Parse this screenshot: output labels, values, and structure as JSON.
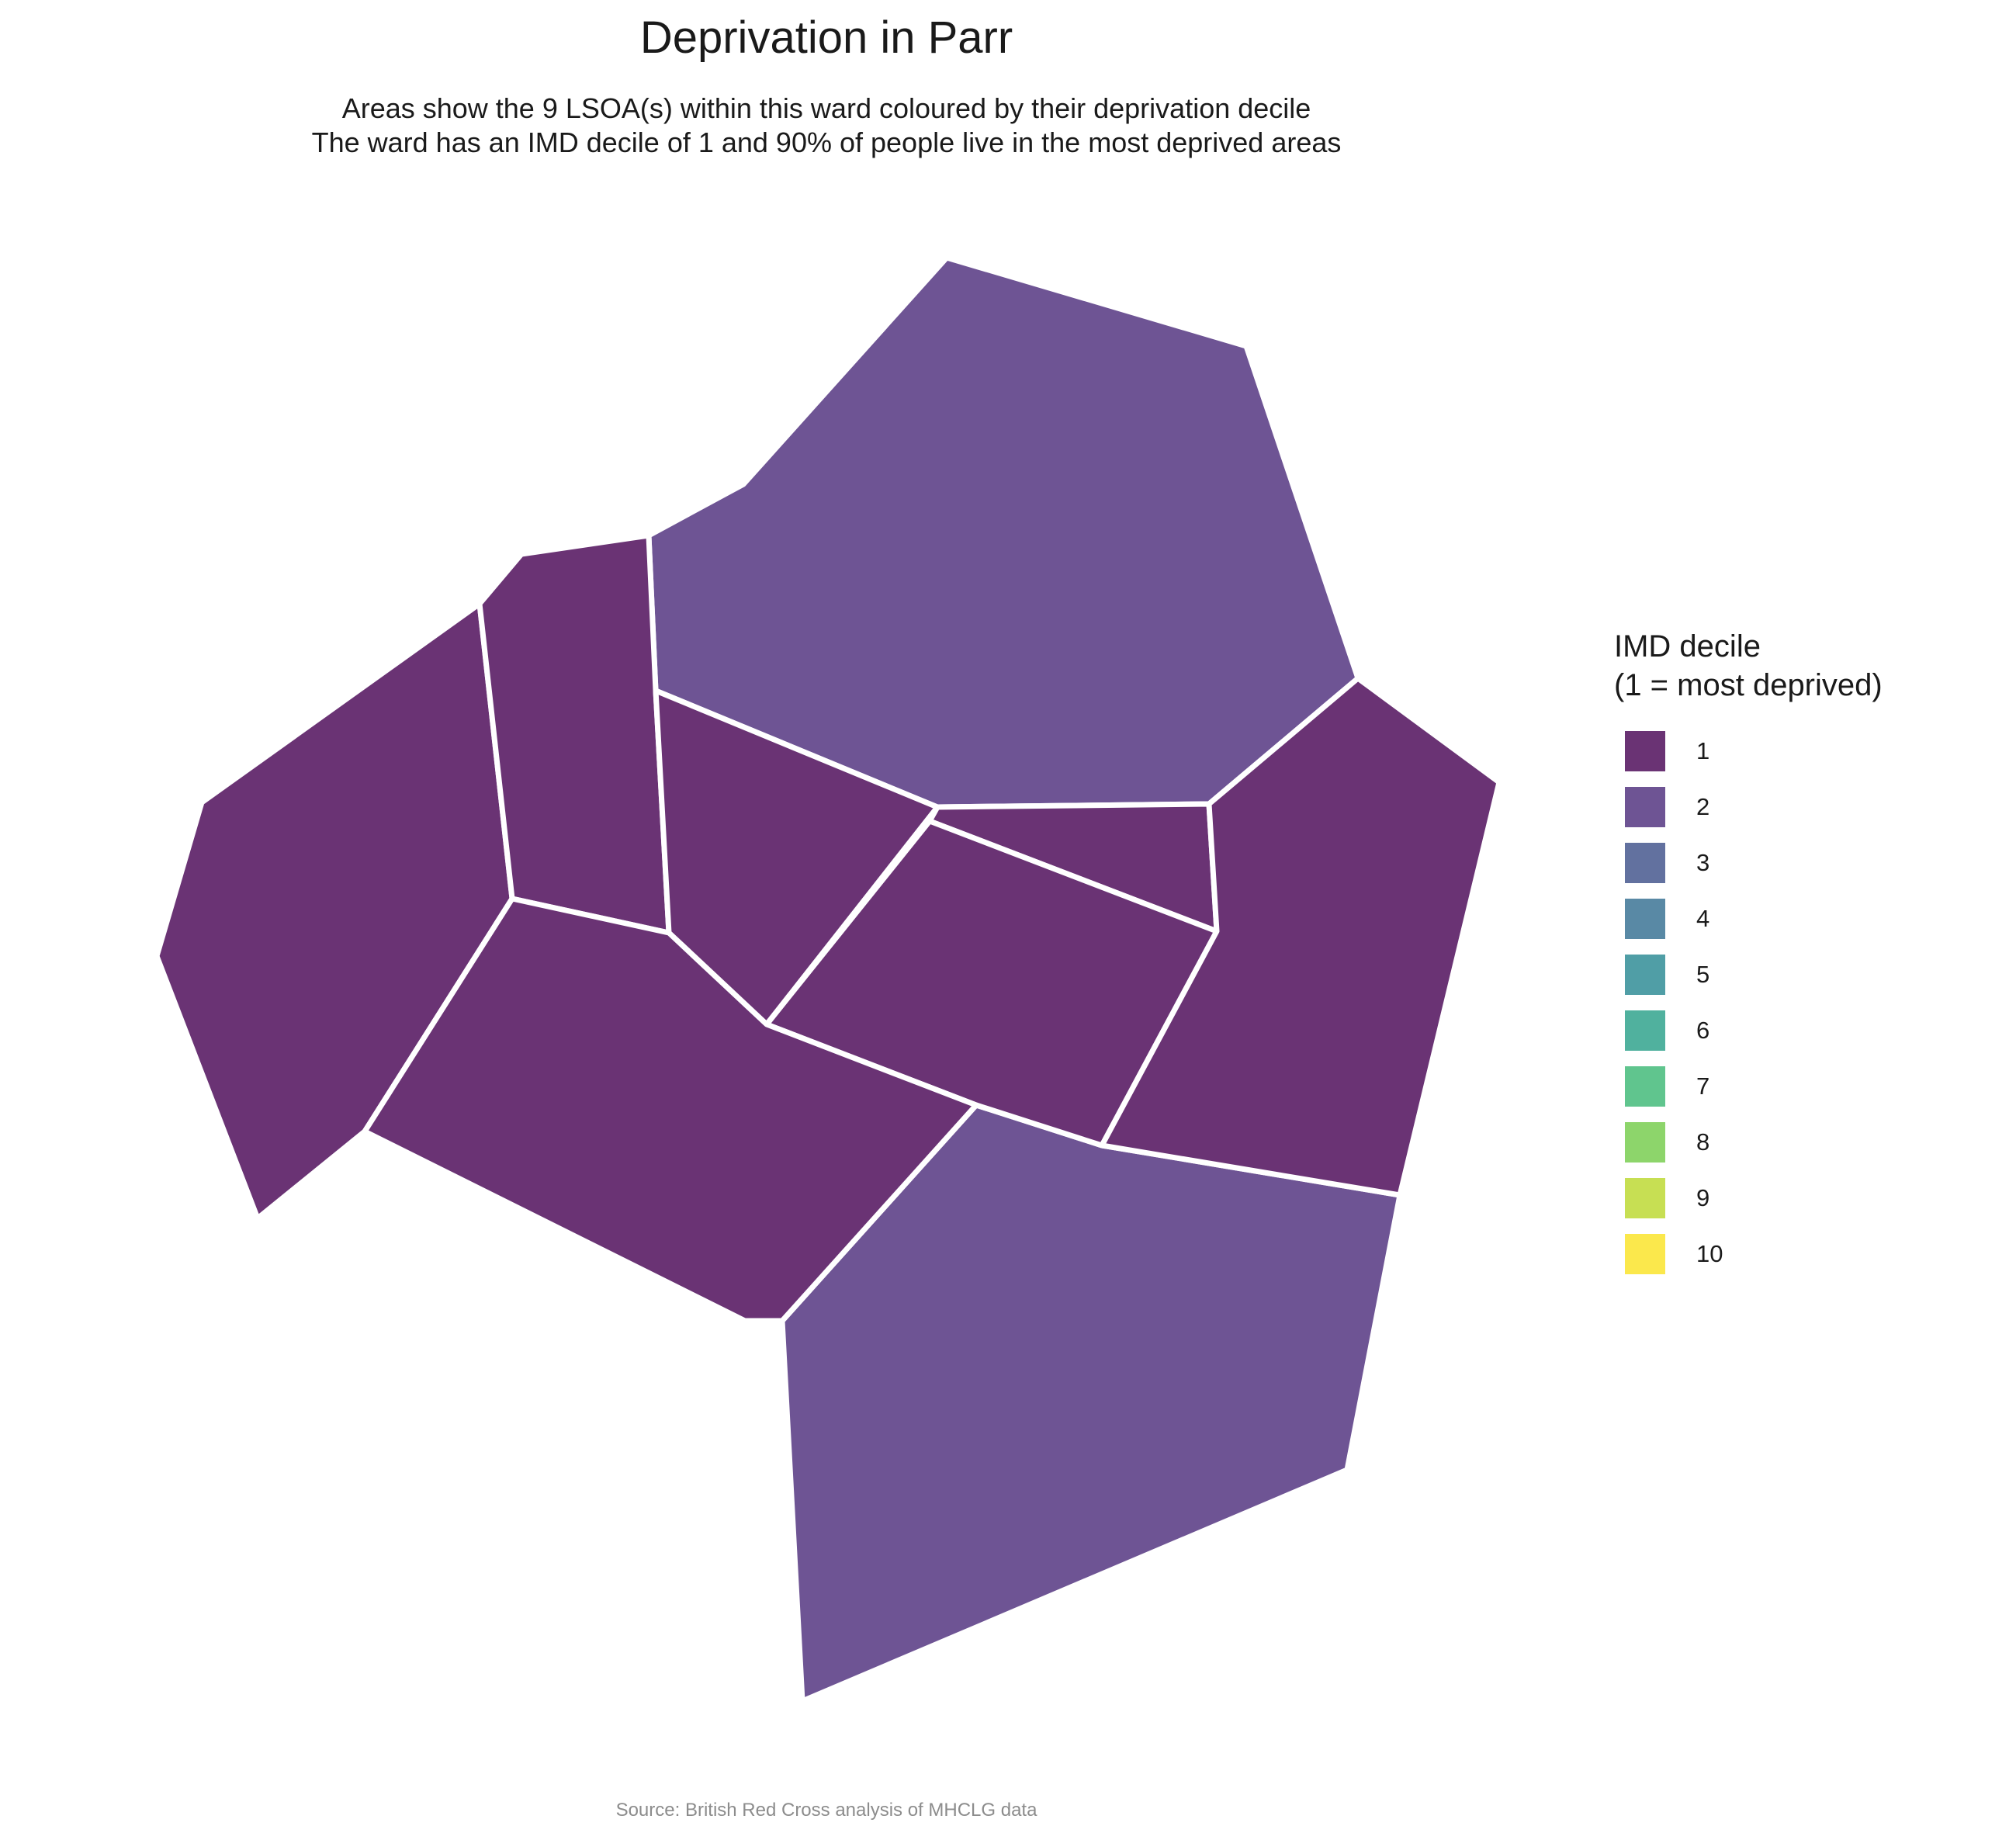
{
  "title": "Deprivation in Parr",
  "subtitle": {
    "line1": "Areas show the 9 LSOA(s) within this ward coloured by their deprivation decile",
    "line2": "The ward has an IMD decile of 1 and 90% of people live in the most deprived areas"
  },
  "caption": "Source: British Red Cross analysis of MHCLG data",
  "legend": {
    "title_line1": "IMD decile",
    "title_line2": "(1 = most deprived)",
    "items": [
      {
        "label": "1",
        "color": "#6a3374"
      },
      {
        "label": "2",
        "color": "#6e5494"
      },
      {
        "label": "3",
        "color": "#62719f"
      },
      {
        "label": "4",
        "color": "#5989a5"
      },
      {
        "label": "5",
        "color": "#509ea6"
      },
      {
        "label": "6",
        "color": "#50b19e"
      },
      {
        "label": "7",
        "color": "#60c58e"
      },
      {
        "label": "8",
        "color": "#8dd56b"
      },
      {
        "label": "9",
        "color": "#c7df53"
      },
      {
        "label": "10",
        "color": "#fbe84c"
      }
    ]
  },
  "map": {
    "areas": [
      {
        "name": "north",
        "decile": 2
      },
      {
        "name": "south",
        "decile": 2
      },
      {
        "name": "west",
        "decile": 1
      },
      {
        "name": "north-west",
        "decile": 1
      },
      {
        "name": "central",
        "decile": 1
      },
      {
        "name": "central-north-east",
        "decile": 1
      },
      {
        "name": "central-east",
        "decile": 1
      },
      {
        "name": "east",
        "decile": 1
      },
      {
        "name": "south-west",
        "decile": 1
      }
    ]
  }
}
